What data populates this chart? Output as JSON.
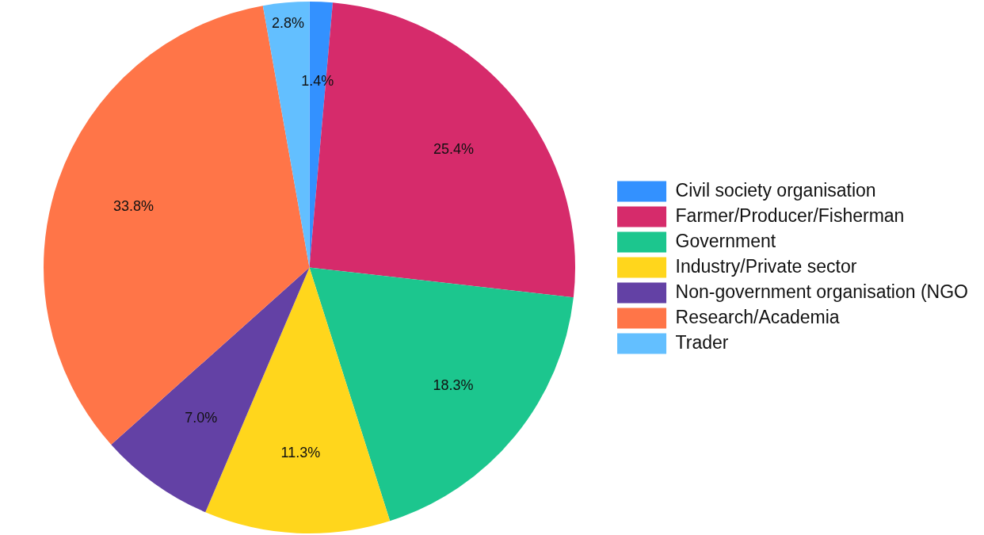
{
  "chart_data": {
    "type": "pie",
    "categories": [
      "Civil society organisation",
      "Farmer/Producer/Fisherman",
      "Government",
      "Industry/Private sector",
      "Non-government organisation (NGO",
      "Research/Academia",
      "Trader"
    ],
    "values": [
      1.4,
      25.4,
      18.3,
      11.3,
      7.0,
      33.8,
      2.8
    ],
    "colors": [
      "#3391ff",
      "#d62b6b",
      "#1cc68e",
      "#ffd61c",
      "#6341a5",
      "#ff7548",
      "#63bfff"
    ],
    "value_labels": [
      "1.4%",
      "25.4%",
      "18.3%",
      "11.3%",
      "7.0%",
      "33.8%",
      "2.8%"
    ],
    "legend": "right"
  }
}
